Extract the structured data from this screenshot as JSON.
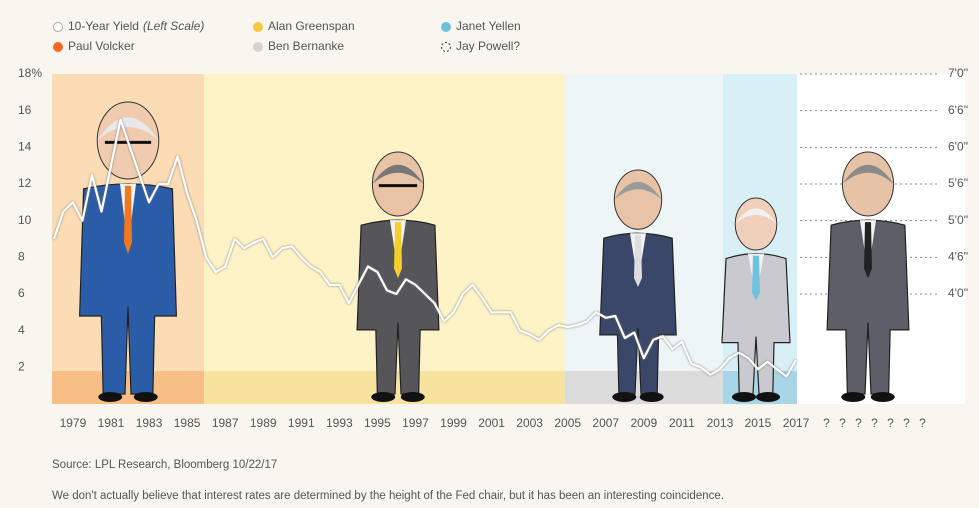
{
  "chart_data": {
    "type": "line",
    "series": [
      {
        "name": "10-Year Yield",
        "scale_note": "(Left Scale)",
        "color": "#ffffff",
        "x": [
          1978.0,
          1978.5,
          1979.0,
          1979.5,
          1980.0,
          1980.5,
          1981.0,
          1981.5,
          1982.0,
          1982.5,
          1983.0,
          1983.5,
          1984.0,
          1984.5,
          1985.0,
          1985.5,
          1986.0,
          1986.5,
          1987.0,
          1987.5,
          1988.0,
          1988.5,
          1989.0,
          1989.5,
          1990.0,
          1990.5,
          1991.0,
          1991.5,
          1992.0,
          1992.5,
          1993.0,
          1993.5,
          1994.0,
          1994.5,
          1995.0,
          1995.5,
          1996.0,
          1996.5,
          1997.0,
          1997.5,
          1998.0,
          1998.5,
          1999.0,
          1999.5,
          2000.0,
          2000.5,
          2001.0,
          2001.5,
          2002.0,
          2002.5,
          2003.0,
          2003.5,
          2004.0,
          2004.5,
          2005.0,
          2005.5,
          2006.0,
          2006.5,
          2007.0,
          2007.5,
          2008.0,
          2008.5,
          2009.0,
          2009.5,
          2010.0,
          2010.5,
          2011.0,
          2011.5,
          2012.0,
          2012.5,
          2013.0,
          2013.5,
          2014.0,
          2014.5,
          2015.0,
          2015.5,
          2016.0,
          2016.5,
          2017.0
        ],
        "values": [
          9.0,
          10.5,
          11.0,
          10.0,
          12.5,
          10.5,
          13.0,
          15.5,
          14.0,
          12.5,
          11.0,
          12.0,
          12.0,
          13.5,
          11.5,
          10.0,
          8.0,
          7.2,
          7.5,
          9.0,
          8.5,
          8.8,
          9.0,
          8.0,
          8.5,
          8.6,
          8.0,
          7.5,
          7.2,
          6.5,
          6.5,
          5.5,
          6.5,
          7.5,
          7.2,
          6.2,
          6.0,
          6.8,
          6.5,
          6.0,
          5.5,
          4.5,
          5.0,
          6.0,
          6.5,
          5.8,
          5.0,
          5.0,
          5.0,
          4.0,
          3.8,
          3.5,
          4.0,
          4.3,
          4.2,
          4.3,
          4.5,
          5.0,
          4.7,
          4.8,
          3.6,
          3.9,
          2.5,
          3.5,
          3.7,
          3.0,
          3.4,
          2.2,
          2.0,
          1.6,
          1.9,
          2.5,
          2.8,
          2.5,
          1.9,
          2.3,
          1.9,
          1.5,
          2.4
        ]
      }
    ],
    "bands": [
      {
        "name": "Paul Volcker",
        "color": "#fbdcb5",
        "stripe_color": "#f7be86",
        "legend_color": "#f26b21",
        "start": 1977.9,
        "end": 1985.9
      },
      {
        "name": "Alan Greenspan",
        "color": "#fdf3c6",
        "stripe_color": "#f8e39e",
        "legend_color": "#f5c842",
        "start": 1985.9,
        "end": 2004.85
      },
      {
        "name": "Ben Bernanke",
        "color": "#eef5f6",
        "stripe_color": "#dcdcdc",
        "legend_color": "#d4d4d4",
        "start": 2004.85,
        "end": 2013.16
      },
      {
        "name": "Janet Yellen",
        "color": "#d9eff6",
        "stripe_color": "#a8d6e6",
        "legend_color": "#6cc0db",
        "start": 2013.16,
        "end": 2017.05
      }
    ],
    "future_chair": "Jay Powell?",
    "xlim": [
      1977.9,
      2017.05
    ],
    "xticks": [
      1979,
      1981,
      1983,
      1985,
      1987,
      1989,
      1991,
      1993,
      1995,
      1997,
      1999,
      2001,
      2003,
      2005,
      2007,
      2009,
      2011,
      2013,
      2015,
      2017
    ],
    "future_label": "? ? ? ? ? ? ?",
    "ylim": [
      0,
      18
    ],
    "yticks": [
      2,
      4,
      6,
      8,
      10,
      12,
      14,
      16,
      {
        "value": 18,
        "label": "18%"
      }
    ],
    "y2lim": [
      0,
      18
    ],
    "y2ticks": [
      {
        "value": 6,
        "label": "4'0''"
      },
      {
        "value": 8,
        "label": "4'6''"
      },
      {
        "value": 10,
        "label": "5'0''"
      },
      {
        "value": 12,
        "label": "5'6''"
      },
      {
        "value": 14,
        "label": "6'0''"
      },
      {
        "value": 16,
        "label": "6'6''"
      },
      {
        "value": 18,
        "label": "7'0''"
      }
    ],
    "source": "Source: LPL Research, Bloomberg   10/22/17",
    "footnote": "We don't actually believe that interest rates are determined by the height of the Fed chair, but it has been an interesting coincidence."
  }
}
